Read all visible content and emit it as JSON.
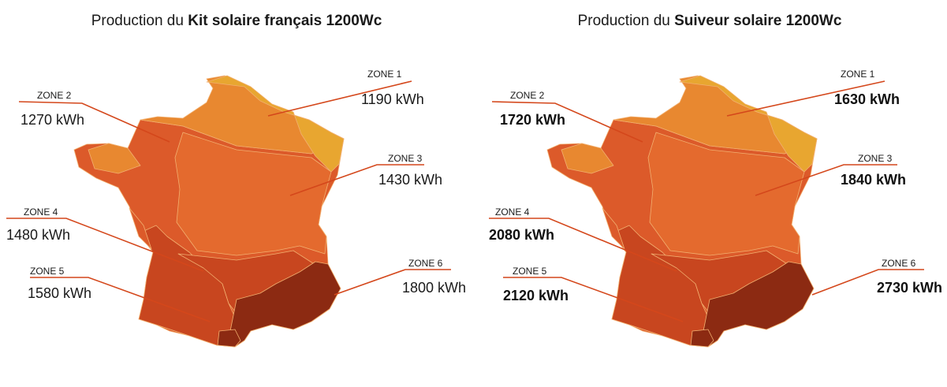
{
  "colors": {
    "zone1": "#E8A630",
    "zone2": "#E88830",
    "zone3": "#E46A2E",
    "zone4": "#DC5A2A",
    "zone5": "#C8461F",
    "zone6": "#8C2A12",
    "leader": "#D4471B",
    "border": "#F2B070"
  },
  "left": {
    "title_prefix": "Production du ",
    "title_bold": "Kit solaire français 1200Wc",
    "zones": [
      {
        "id": "zone1",
        "label": "ZONE 1",
        "value": "1190 kWh"
      },
      {
        "id": "zone2",
        "label": "ZONE 2",
        "value": "1270 kWh"
      },
      {
        "id": "zone3",
        "label": "ZONE 3",
        "value": "1430 kWh"
      },
      {
        "id": "zone4",
        "label": "ZONE 4",
        "value": "1480 kWh"
      },
      {
        "id": "zone5",
        "label": "ZONE 5",
        "value": "1580 kWh"
      },
      {
        "id": "zone6",
        "label": "ZONE 6",
        "value": "1800 kWh"
      }
    ]
  },
  "right": {
    "title_prefix": "Production du ",
    "title_bold": "Suiveur solaire 1200Wc",
    "zones": [
      {
        "id": "zone1",
        "label": "ZONE 1",
        "value": "1630 kWh"
      },
      {
        "id": "zone2",
        "label": "ZONE 2",
        "value": "1720 kWh"
      },
      {
        "id": "zone3",
        "label": "ZONE 3",
        "value": "1840 kWh"
      },
      {
        "id": "zone4",
        "label": "ZONE 4",
        "value": "2080 kWh"
      },
      {
        "id": "zone5",
        "label": "ZONE 5",
        "value": "2120 kWh"
      },
      {
        "id": "zone6",
        "label": "ZONE 6",
        "value": "2730 kWh"
      }
    ]
  }
}
